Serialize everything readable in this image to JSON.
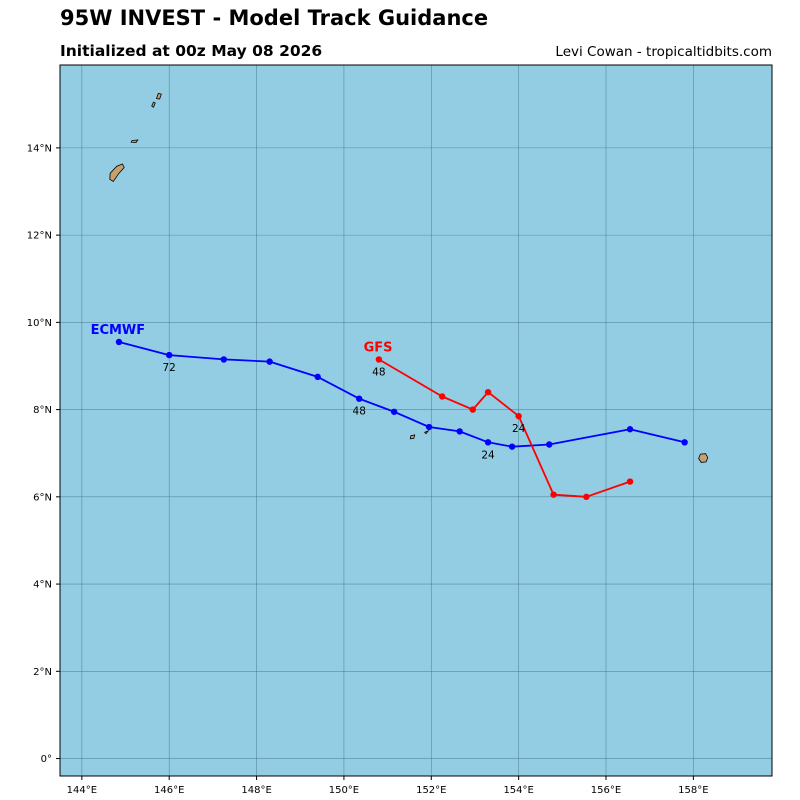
{
  "header": {
    "title": "95W INVEST - Model Track Guidance",
    "subtitle": "Initialized at 00z May 08 2026",
    "credit": "Levi Cowan - tropicaltidbits.com"
  },
  "colors": {
    "ocean": "#93cde3",
    "land": "#c8a06e",
    "grid": "#3f6e80",
    "ecmwf": "#0000ff",
    "gfs": "#ff0000"
  },
  "chart_data": {
    "type": "map-tracks",
    "lon_range": [
      143.5,
      159.8
    ],
    "lat_range": [
      -0.4,
      15.9
    ],
    "x_ticks": [
      {
        "value": 144,
        "label": "144°E"
      },
      {
        "value": 146,
        "label": "146°E"
      },
      {
        "value": 148,
        "label": "148°E"
      },
      {
        "value": 150,
        "label": "150°E"
      },
      {
        "value": 152,
        "label": "152°E"
      },
      {
        "value": 154,
        "label": "154°E"
      },
      {
        "value": 156,
        "label": "156°E"
      },
      {
        "value": 158,
        "label": "158°E"
      }
    ],
    "y_ticks": [
      {
        "value": 0,
        "label": "0°"
      },
      {
        "value": 2,
        "label": "2°N"
      },
      {
        "value": 4,
        "label": "4°N"
      },
      {
        "value": 6,
        "label": "6°N"
      },
      {
        "value": 8,
        "label": "8°N"
      },
      {
        "value": 10,
        "label": "10°N"
      },
      {
        "value": 12,
        "label": "12°N"
      },
      {
        "value": 14,
        "label": "14°N"
      }
    ],
    "tracks": [
      {
        "name": "ECMWF",
        "color": "#0000ff",
        "label_lon": 144.2,
        "label_lat": 9.85,
        "points": [
          [
            157.8,
            7.25
          ],
          [
            156.55,
            7.55
          ],
          [
            154.7,
            7.2
          ],
          [
            153.85,
            7.15
          ],
          [
            153.3,
            7.25
          ],
          [
            152.65,
            7.5
          ],
          [
            151.95,
            7.6
          ],
          [
            151.15,
            7.95
          ],
          [
            150.35,
            8.25
          ],
          [
            149.4,
            8.75
          ],
          [
            148.3,
            9.1
          ],
          [
            147.25,
            9.15
          ],
          [
            146.0,
            9.25
          ],
          [
            144.85,
            9.55
          ]
        ],
        "hour_labels": [
          {
            "text": "24",
            "lon": 153.3,
            "lat": 7.25
          },
          {
            "text": "48",
            "lon": 150.35,
            "lat": 8.25
          },
          {
            "text": "72",
            "lon": 146.0,
            "lat": 9.25
          }
        ]
      },
      {
        "name": "GFS",
        "color": "#ff0000",
        "label_lon": 150.45,
        "label_lat": 9.45,
        "points": [
          [
            156.55,
            6.35
          ],
          [
            155.55,
            6.0
          ],
          [
            154.8,
            6.05
          ],
          [
            154.0,
            7.85
          ],
          [
            153.3,
            8.4
          ],
          [
            152.95,
            8.0
          ],
          [
            152.25,
            8.3
          ],
          [
            150.8,
            9.15
          ]
        ],
        "hour_labels": [
          {
            "text": "24",
            "lon": 154.0,
            "lat": 7.85
          },
          {
            "text": "48",
            "lon": 150.8,
            "lat": 9.15
          }
        ]
      }
    ],
    "islands": [
      {
        "name": "saipan",
        "points": [
          [
            145.75,
            15.25
          ],
          [
            145.82,
            15.23
          ],
          [
            145.78,
            15.12
          ],
          [
            145.71,
            15.13
          ]
        ]
      },
      {
        "name": "tinian",
        "points": [
          [
            145.64,
            15.05
          ],
          [
            145.68,
            15.03
          ],
          [
            145.64,
            14.93
          ],
          [
            145.6,
            14.96
          ]
        ]
      },
      {
        "name": "rota",
        "points": [
          [
            145.15,
            14.17
          ],
          [
            145.28,
            14.18
          ],
          [
            145.24,
            14.12
          ],
          [
            145.13,
            14.13
          ]
        ]
      },
      {
        "name": "guam",
        "points": [
          [
            144.93,
            13.63
          ],
          [
            144.97,
            13.55
          ],
          [
            144.85,
            13.42
          ],
          [
            144.72,
            13.23
          ],
          [
            144.64,
            13.28
          ],
          [
            144.65,
            13.42
          ],
          [
            144.8,
            13.58
          ]
        ]
      },
      {
        "name": "atoll-1",
        "points": [
          [
            151.53,
            7.4
          ],
          [
            151.62,
            7.42
          ],
          [
            151.6,
            7.34
          ],
          [
            151.52,
            7.33
          ]
        ]
      },
      {
        "name": "atoll-2",
        "points": [
          [
            151.85,
            7.48
          ],
          [
            151.93,
            7.51
          ],
          [
            151.88,
            7.45
          ]
        ]
      },
      {
        "name": "pohnpei",
        "points": [
          [
            158.16,
            6.98
          ],
          [
            158.28,
            6.99
          ],
          [
            158.33,
            6.9
          ],
          [
            158.29,
            6.8
          ],
          [
            158.18,
            6.79
          ],
          [
            158.12,
            6.88
          ]
        ]
      }
    ]
  }
}
